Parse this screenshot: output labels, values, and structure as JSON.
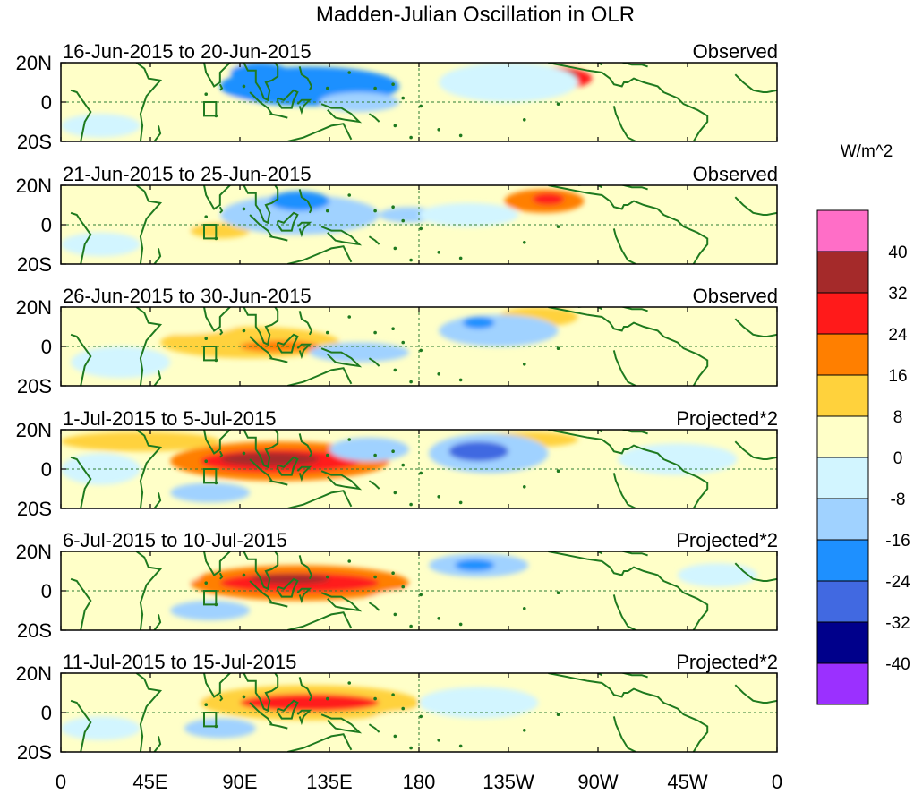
{
  "chart_data": {
    "type": "heatmap",
    "title": "Madden-Julian Oscillation in OLR",
    "unit_label": "W/m^2",
    "x_ticks": [
      "0",
      "45E",
      "90E",
      "135E",
      "180",
      "135W",
      "90W",
      "45W",
      "0"
    ],
    "lon_range": [
      0,
      360
    ],
    "y_ticks": [
      "20N",
      "0",
      "20S"
    ],
    "lat_range": [
      -20,
      20
    ],
    "colorbar": {
      "levels": [
        "40",
        "32",
        "24",
        "16",
        "8",
        "0",
        "-8",
        "-16",
        "-24",
        "-32",
        "-40"
      ],
      "colors": [
        "#ff6ec7",
        "#a52a2a",
        "#ff1a1a",
        "#ff7f00",
        "#ffd23c",
        "#ffffc8",
        "#d2f5ff",
        "#a0d2ff",
        "#1e90ff",
        "#4169e1",
        "#00008b",
        "#9b30ff"
      ]
    },
    "panels": [
      {
        "left_label": "16-Jun-2015 to 20-Jun-2015",
        "right_label": "Observed",
        "anomalies": [
          {
            "lon": 245,
            "lat": 12,
            "rx": 22,
            "ry": 6,
            "value": 28
          },
          {
            "lon": 250,
            "lat": 13,
            "rx": 10,
            "ry": 3.5,
            "value": 36
          },
          {
            "lon": 75,
            "lat": -2,
            "rx": 22,
            "ry": 5,
            "value": 6
          },
          {
            "lon": 50,
            "lat": 2,
            "rx": 10,
            "ry": 4,
            "value": 5
          },
          {
            "lon": 60,
            "lat": 18,
            "rx": 35,
            "ry": 5,
            "value": 3
          },
          {
            "lon": 125,
            "lat": 8,
            "rx": 45,
            "ry": 10,
            "value": -16
          },
          {
            "lon": 150,
            "lat": 0,
            "rx": 20,
            "ry": 5,
            "value": -12
          },
          {
            "lon": 100,
            "lat": 15,
            "rx": 15,
            "ry": 5,
            "value": -20
          },
          {
            "lon": 225,
            "lat": 10,
            "rx": 35,
            "ry": 10,
            "value": -5
          },
          {
            "lon": 330,
            "lat": 5,
            "rx": 25,
            "ry": 7,
            "value": 3
          },
          {
            "lon": 20,
            "lat": -12,
            "rx": 20,
            "ry": 6,
            "value": -6
          }
        ]
      },
      {
        "left_label": "21-Jun-2015 to 25-Jun-2015",
        "right_label": "Observed",
        "anomalies": [
          {
            "lon": 243,
            "lat": 12,
            "rx": 20,
            "ry": 6,
            "value": 20
          },
          {
            "lon": 245,
            "lat": 13,
            "rx": 8,
            "ry": 3,
            "value": 28
          },
          {
            "lon": 55,
            "lat": 5,
            "rx": 35,
            "ry": 8,
            "value": 6
          },
          {
            "lon": 80,
            "lat": -3,
            "rx": 15,
            "ry": 4,
            "value": 14
          },
          {
            "lon": 120,
            "lat": 5,
            "rx": 40,
            "ry": 10,
            "value": -10
          },
          {
            "lon": 120,
            "lat": 12,
            "rx": 15,
            "ry": 5,
            "value": -20
          },
          {
            "lon": 175,
            "lat": 5,
            "rx": 15,
            "ry": 4,
            "value": -10
          },
          {
            "lon": 205,
            "lat": 5,
            "rx": 25,
            "ry": 6,
            "value": -6
          },
          {
            "lon": 330,
            "lat": 5,
            "rx": 20,
            "ry": 5,
            "value": 6
          },
          {
            "lon": 20,
            "lat": -10,
            "rx": 20,
            "ry": 6,
            "value": -5
          }
        ]
      },
      {
        "left_label": "26-Jun-2015 to 30-Jun-2015",
        "right_label": "Observed",
        "anomalies": [
          {
            "lon": 95,
            "lat": 2,
            "rx": 45,
            "ry": 8,
            "value": 10
          },
          {
            "lon": 110,
            "lat": 0,
            "rx": 20,
            "ry": 3,
            "value": 18
          },
          {
            "lon": 60,
            "lat": 12,
            "rx": 30,
            "ry": 6,
            "value": 5
          },
          {
            "lon": 240,
            "lat": 15,
            "rx": 20,
            "ry": 5,
            "value": 12
          },
          {
            "lon": 150,
            "lat": -3,
            "rx": 25,
            "ry": 5,
            "value": -8
          },
          {
            "lon": 220,
            "lat": 8,
            "rx": 30,
            "ry": 8,
            "value": -8
          },
          {
            "lon": 210,
            "lat": 12,
            "rx": 8,
            "ry": 3,
            "value": -18
          },
          {
            "lon": 30,
            "lat": -8,
            "rx": 25,
            "ry": 8,
            "value": -4
          },
          {
            "lon": 325,
            "lat": 5,
            "rx": 20,
            "ry": 5,
            "value": 4
          }
        ]
      },
      {
        "left_label": "1-Jul-2015 to 5-Jul-2015",
        "right_label": "Projected*2",
        "anomalies": [
          {
            "lon": 110,
            "lat": 4,
            "rx": 55,
            "ry": 10,
            "value": 16
          },
          {
            "lon": 110,
            "lat": 4,
            "rx": 40,
            "ry": 6,
            "value": 26
          },
          {
            "lon": 105,
            "lat": 5,
            "rx": 25,
            "ry": 3.5,
            "value": 34
          },
          {
            "lon": 40,
            "lat": 14,
            "rx": 40,
            "ry": 5,
            "value": 10
          },
          {
            "lon": 235,
            "lat": 15,
            "rx": 25,
            "ry": 4,
            "value": 12
          },
          {
            "lon": 215,
            "lat": 8,
            "rx": 30,
            "ry": 10,
            "value": -14
          },
          {
            "lon": 210,
            "lat": 9,
            "rx": 15,
            "ry": 5,
            "value": -26
          },
          {
            "lon": 155,
            "lat": 10,
            "rx": 20,
            "ry": 6,
            "value": -12
          },
          {
            "lon": 75,
            "lat": -12,
            "rx": 20,
            "ry": 5,
            "value": -8
          },
          {
            "lon": 180,
            "lat": -10,
            "rx": 30,
            "ry": 6,
            "value": 6
          },
          {
            "lon": 20,
            "lat": 0,
            "rx": 20,
            "ry": 8,
            "value": -6
          },
          {
            "lon": 310,
            "lat": 5,
            "rx": 30,
            "ry": 8,
            "value": -4
          }
        ]
      },
      {
        "left_label": "6-Jul-2015 to 10-Jul-2015",
        "right_label": "Projected*2",
        "anomalies": [
          {
            "lon": 120,
            "lat": 4,
            "rx": 55,
            "ry": 9,
            "value": 16
          },
          {
            "lon": 120,
            "lat": 4,
            "rx": 40,
            "ry": 5,
            "value": 26
          },
          {
            "lon": 115,
            "lat": 6,
            "rx": 20,
            "ry": 2.5,
            "value": 33
          },
          {
            "lon": 210,
            "lat": 13,
            "rx": 25,
            "ry": 6,
            "value": -12
          },
          {
            "lon": 208,
            "lat": 13,
            "rx": 10,
            "ry": 3,
            "value": -20
          },
          {
            "lon": 75,
            "lat": -10,
            "rx": 20,
            "ry": 5,
            "value": -10
          },
          {
            "lon": 40,
            "lat": 8,
            "rx": 30,
            "ry": 6,
            "value": 6
          },
          {
            "lon": 180,
            "lat": -5,
            "rx": 25,
            "ry": 6,
            "value": 5
          },
          {
            "lon": 295,
            "lat": -5,
            "rx": 30,
            "ry": 8,
            "value": 4
          },
          {
            "lon": 330,
            "lat": 8,
            "rx": 20,
            "ry": 6,
            "value": -4
          }
        ]
      },
      {
        "left_label": "11-Jul-2015 to 15-Jul-2015",
        "right_label": "Projected*2",
        "anomalies": [
          {
            "lon": 125,
            "lat": 5,
            "rx": 55,
            "ry": 9,
            "value": 14
          },
          {
            "lon": 125,
            "lat": 5,
            "rx": 35,
            "ry": 4.5,
            "value": 26
          },
          {
            "lon": 80,
            "lat": -8,
            "rx": 18,
            "ry": 5,
            "value": -14
          },
          {
            "lon": 45,
            "lat": 10,
            "rx": 30,
            "ry": 6,
            "value": 5
          },
          {
            "lon": 210,
            "lat": 5,
            "rx": 30,
            "ry": 8,
            "value": -6
          },
          {
            "lon": 175,
            "lat": -5,
            "rx": 20,
            "ry": 6,
            "value": 6
          },
          {
            "lon": 285,
            "lat": 0,
            "rx": 40,
            "ry": 10,
            "value": 4
          },
          {
            "lon": 20,
            "lat": -8,
            "rx": 20,
            "ry": 6,
            "value": -5
          }
        ]
      }
    ]
  }
}
